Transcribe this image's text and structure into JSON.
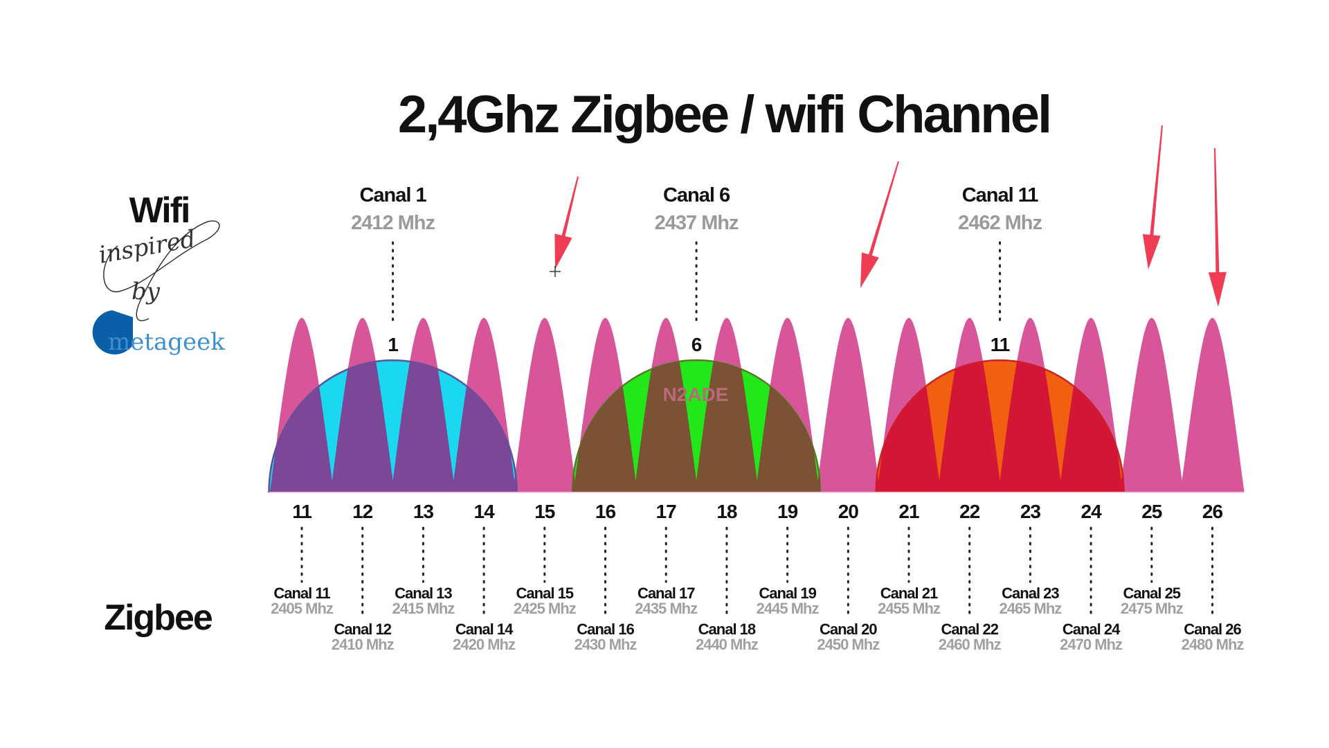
{
  "title": "2,4Ghz Zigbee / wifi Channel",
  "wifi_label": "Wifi",
  "zigbee_label": "Zigbee",
  "credit": {
    "script_text": "inspired by",
    "logo_text": "metageek",
    "logo_color": "#0b5ea8"
  },
  "watermark": "N2ADE",
  "colors": {
    "zigbee_peak": "#d9559a",
    "annotation_arrow": "#ee3d55"
  },
  "wifi_channels": [
    {
      "number": "1",
      "label": "Canal 1",
      "freq": "2412 Mhz",
      "light": "#1ad8f0",
      "dark": "#7b4796",
      "stroke": "#1a6fa8"
    },
    {
      "number": "6",
      "label": "Canal 6",
      "freq": "2437 Mhz",
      "light": "#22e81a",
      "dark": "#7b5234",
      "stroke": "#22c01a"
    },
    {
      "number": "11",
      "label": "Canal 11",
      "freq": "2462 Mhz",
      "light": "#f06010",
      "dark": "#d41636",
      "stroke": "#b04010"
    }
  ],
  "zigbee_channels": [
    {
      "number": "11",
      "label": "Canal 11",
      "freq": "2405 Mhz"
    },
    {
      "number": "12",
      "label": "Canal 12",
      "freq": "2410 Mhz"
    },
    {
      "number": "13",
      "label": "Canal 13",
      "freq": "2415 Mhz"
    },
    {
      "number": "14",
      "label": "Canal 14",
      "freq": "2420 Mhz"
    },
    {
      "number": "15",
      "label": "Canal 15",
      "freq": "2425 Mhz"
    },
    {
      "number": "16",
      "label": "Canal 16",
      "freq": "2430 Mhz"
    },
    {
      "number": "17",
      "label": "Canal 17",
      "freq": "2435 Mhz"
    },
    {
      "number": "18",
      "label": "Canal 18",
      "freq": "2440 Mhz"
    },
    {
      "number": "19",
      "label": "Canal 19",
      "freq": "2445 Mhz"
    },
    {
      "number": "20",
      "label": "Canal 20",
      "freq": "2450 Mhz"
    },
    {
      "number": "21",
      "label": "Canal 21",
      "freq": "2455 Mhz"
    },
    {
      "number": "22",
      "label": "Canal 22",
      "freq": "2460 Mhz"
    },
    {
      "number": "23",
      "label": "Canal 23",
      "freq": "2465 Mhz"
    },
    {
      "number": "24",
      "label": "Canal 24",
      "freq": "2470 Mhz"
    },
    {
      "number": "25",
      "label": "Canal 25",
      "freq": "2475 Mhz"
    },
    {
      "number": "26",
      "label": "Canal 26",
      "freq": "2480 Mhz"
    }
  ],
  "annotations": {
    "arrows_point_to_zigbee_channels": [
      "15",
      "20",
      "25",
      "26"
    ]
  }
}
